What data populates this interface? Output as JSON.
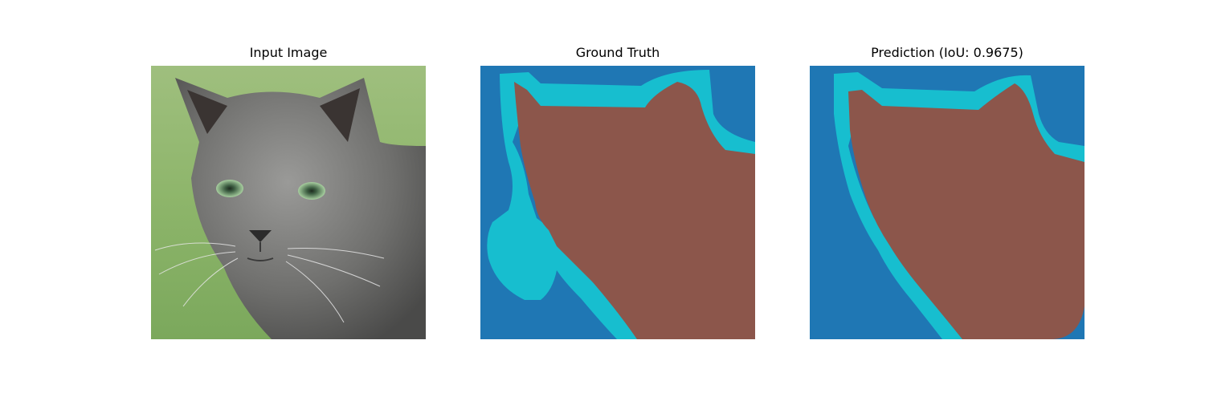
{
  "panels": {
    "input": {
      "title": "Input Image"
    },
    "ground_truth": {
      "title": "Ground Truth"
    },
    "prediction": {
      "title": "Prediction (IoU: 0.9675)"
    }
  },
  "colors": {
    "background_class": "#1f77b4",
    "boundary_class": "#17becf",
    "foreground_class": "#8c564b"
  },
  "icons": {
    "input": "cat-photo",
    "ground_truth": "segmentation-mask",
    "prediction": "segmentation-mask"
  }
}
